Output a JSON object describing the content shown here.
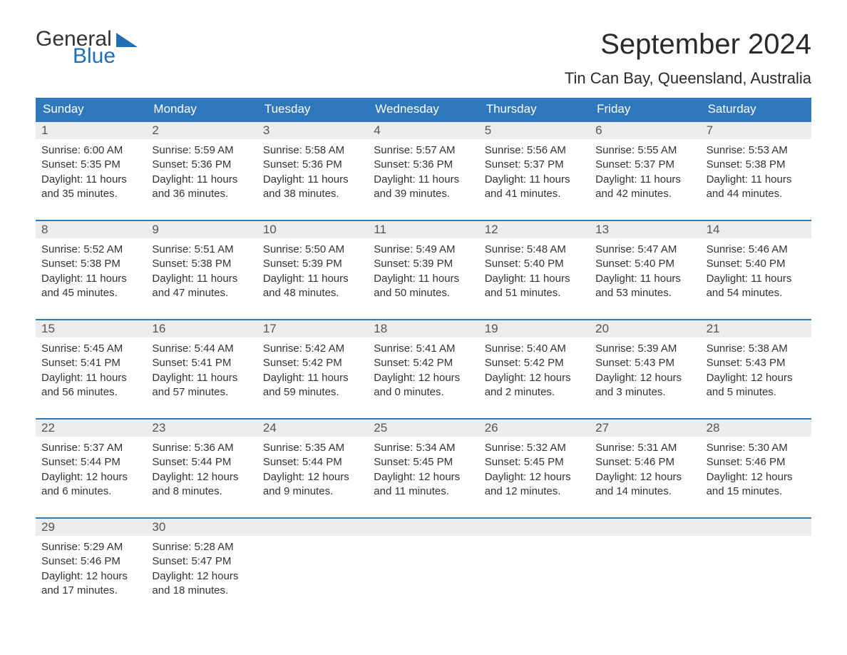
{
  "logo": {
    "line1": "General",
    "line2": "Blue"
  },
  "title": "September 2024",
  "location": "Tin Can Bay, Queensland, Australia",
  "colors": {
    "header_bg": "#2f78bd",
    "header_text": "#ffffff",
    "daynum_bg": "#ececec",
    "daynum_text": "#555555",
    "body_text": "#333333",
    "accent": "#1f6fb2",
    "page_bg": "#ffffff"
  },
  "typography": {
    "title_fontsize_pt": 30,
    "location_fontsize_pt": 16,
    "header_fontsize_pt": 13,
    "body_fontsize_pt": 11
  },
  "day_headers": [
    "Sunday",
    "Monday",
    "Tuesday",
    "Wednesday",
    "Thursday",
    "Friday",
    "Saturday"
  ],
  "weeks": [
    {
      "nums": [
        "1",
        "2",
        "3",
        "4",
        "5",
        "6",
        "7"
      ],
      "cells": [
        {
          "sunrise": "Sunrise: 6:00 AM",
          "sunset": "Sunset: 5:35 PM",
          "day1": "Daylight: 11 hours",
          "day2": "and 35 minutes."
        },
        {
          "sunrise": "Sunrise: 5:59 AM",
          "sunset": "Sunset: 5:36 PM",
          "day1": "Daylight: 11 hours",
          "day2": "and 36 minutes."
        },
        {
          "sunrise": "Sunrise: 5:58 AM",
          "sunset": "Sunset: 5:36 PM",
          "day1": "Daylight: 11 hours",
          "day2": "and 38 minutes."
        },
        {
          "sunrise": "Sunrise: 5:57 AM",
          "sunset": "Sunset: 5:36 PM",
          "day1": "Daylight: 11 hours",
          "day2": "and 39 minutes."
        },
        {
          "sunrise": "Sunrise: 5:56 AM",
          "sunset": "Sunset: 5:37 PM",
          "day1": "Daylight: 11 hours",
          "day2": "and 41 minutes."
        },
        {
          "sunrise": "Sunrise: 5:55 AM",
          "sunset": "Sunset: 5:37 PM",
          "day1": "Daylight: 11 hours",
          "day2": "and 42 minutes."
        },
        {
          "sunrise": "Sunrise: 5:53 AM",
          "sunset": "Sunset: 5:38 PM",
          "day1": "Daylight: 11 hours",
          "day2": "and 44 minutes."
        }
      ]
    },
    {
      "nums": [
        "8",
        "9",
        "10",
        "11",
        "12",
        "13",
        "14"
      ],
      "cells": [
        {
          "sunrise": "Sunrise: 5:52 AM",
          "sunset": "Sunset: 5:38 PM",
          "day1": "Daylight: 11 hours",
          "day2": "and 45 minutes."
        },
        {
          "sunrise": "Sunrise: 5:51 AM",
          "sunset": "Sunset: 5:38 PM",
          "day1": "Daylight: 11 hours",
          "day2": "and 47 minutes."
        },
        {
          "sunrise": "Sunrise: 5:50 AM",
          "sunset": "Sunset: 5:39 PM",
          "day1": "Daylight: 11 hours",
          "day2": "and 48 minutes."
        },
        {
          "sunrise": "Sunrise: 5:49 AM",
          "sunset": "Sunset: 5:39 PM",
          "day1": "Daylight: 11 hours",
          "day2": "and 50 minutes."
        },
        {
          "sunrise": "Sunrise: 5:48 AM",
          "sunset": "Sunset: 5:40 PM",
          "day1": "Daylight: 11 hours",
          "day2": "and 51 minutes."
        },
        {
          "sunrise": "Sunrise: 5:47 AM",
          "sunset": "Sunset: 5:40 PM",
          "day1": "Daylight: 11 hours",
          "day2": "and 53 minutes."
        },
        {
          "sunrise": "Sunrise: 5:46 AM",
          "sunset": "Sunset: 5:40 PM",
          "day1": "Daylight: 11 hours",
          "day2": "and 54 minutes."
        }
      ]
    },
    {
      "nums": [
        "15",
        "16",
        "17",
        "18",
        "19",
        "20",
        "21"
      ],
      "cells": [
        {
          "sunrise": "Sunrise: 5:45 AM",
          "sunset": "Sunset: 5:41 PM",
          "day1": "Daylight: 11 hours",
          "day2": "and 56 minutes."
        },
        {
          "sunrise": "Sunrise: 5:44 AM",
          "sunset": "Sunset: 5:41 PM",
          "day1": "Daylight: 11 hours",
          "day2": "and 57 minutes."
        },
        {
          "sunrise": "Sunrise: 5:42 AM",
          "sunset": "Sunset: 5:42 PM",
          "day1": "Daylight: 11 hours",
          "day2": "and 59 minutes."
        },
        {
          "sunrise": "Sunrise: 5:41 AM",
          "sunset": "Sunset: 5:42 PM",
          "day1": "Daylight: 12 hours",
          "day2": "and 0 minutes."
        },
        {
          "sunrise": "Sunrise: 5:40 AM",
          "sunset": "Sunset: 5:42 PM",
          "day1": "Daylight: 12 hours",
          "day2": "and 2 minutes."
        },
        {
          "sunrise": "Sunrise: 5:39 AM",
          "sunset": "Sunset: 5:43 PM",
          "day1": "Daylight: 12 hours",
          "day2": "and 3 minutes."
        },
        {
          "sunrise": "Sunrise: 5:38 AM",
          "sunset": "Sunset: 5:43 PM",
          "day1": "Daylight: 12 hours",
          "day2": "and 5 minutes."
        }
      ]
    },
    {
      "nums": [
        "22",
        "23",
        "24",
        "25",
        "26",
        "27",
        "28"
      ],
      "cells": [
        {
          "sunrise": "Sunrise: 5:37 AM",
          "sunset": "Sunset: 5:44 PM",
          "day1": "Daylight: 12 hours",
          "day2": "and 6 minutes."
        },
        {
          "sunrise": "Sunrise: 5:36 AM",
          "sunset": "Sunset: 5:44 PM",
          "day1": "Daylight: 12 hours",
          "day2": "and 8 minutes."
        },
        {
          "sunrise": "Sunrise: 5:35 AM",
          "sunset": "Sunset: 5:44 PM",
          "day1": "Daylight: 12 hours",
          "day2": "and 9 minutes."
        },
        {
          "sunrise": "Sunrise: 5:34 AM",
          "sunset": "Sunset: 5:45 PM",
          "day1": "Daylight: 12 hours",
          "day2": "and 11 minutes."
        },
        {
          "sunrise": "Sunrise: 5:32 AM",
          "sunset": "Sunset: 5:45 PM",
          "day1": "Daylight: 12 hours",
          "day2": "and 12 minutes."
        },
        {
          "sunrise": "Sunrise: 5:31 AM",
          "sunset": "Sunset: 5:46 PM",
          "day1": "Daylight: 12 hours",
          "day2": "and 14 minutes."
        },
        {
          "sunrise": "Sunrise: 5:30 AM",
          "sunset": "Sunset: 5:46 PM",
          "day1": "Daylight: 12 hours",
          "day2": "and 15 minutes."
        }
      ]
    },
    {
      "nums": [
        "29",
        "30",
        "",
        "",
        "",
        "",
        ""
      ],
      "cells": [
        {
          "sunrise": "Sunrise: 5:29 AM",
          "sunset": "Sunset: 5:46 PM",
          "day1": "Daylight: 12 hours",
          "day2": "and 17 minutes."
        },
        {
          "sunrise": "Sunrise: 5:28 AM",
          "sunset": "Sunset: 5:47 PM",
          "day1": "Daylight: 12 hours",
          "day2": "and 18 minutes."
        },
        null,
        null,
        null,
        null,
        null
      ]
    }
  ]
}
